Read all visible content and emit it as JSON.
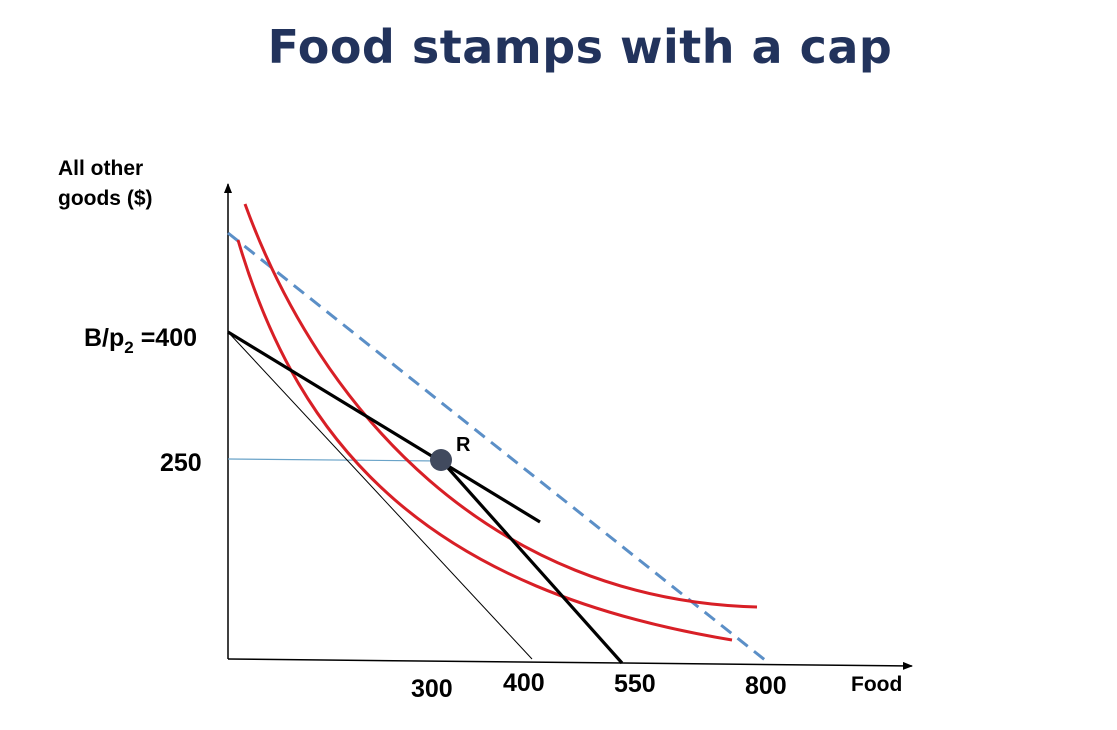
{
  "title": "Food stamps with a cap",
  "y_axis_label_line1": "All other",
  "y_axis_label_line2": "goods ($)",
  "x_axis_label": "Food",
  "y_intercept_label_main": "B/p",
  "y_intercept_label_sub": "2",
  "y_intercept_label_value": " =400",
  "y_tick_250": "250",
  "x_tick_300": "300",
  "x_tick_400": "400",
  "x_tick_550": "550",
  "x_tick_800": "800",
  "point_label": "R",
  "colors": {
    "title": "#22335c",
    "indifference_curves": "#d81f26",
    "dashed_budget": "#5b8fc7",
    "reference_line": "#6aa3c8",
    "point": "#414a5e",
    "axes": "#000000"
  }
}
